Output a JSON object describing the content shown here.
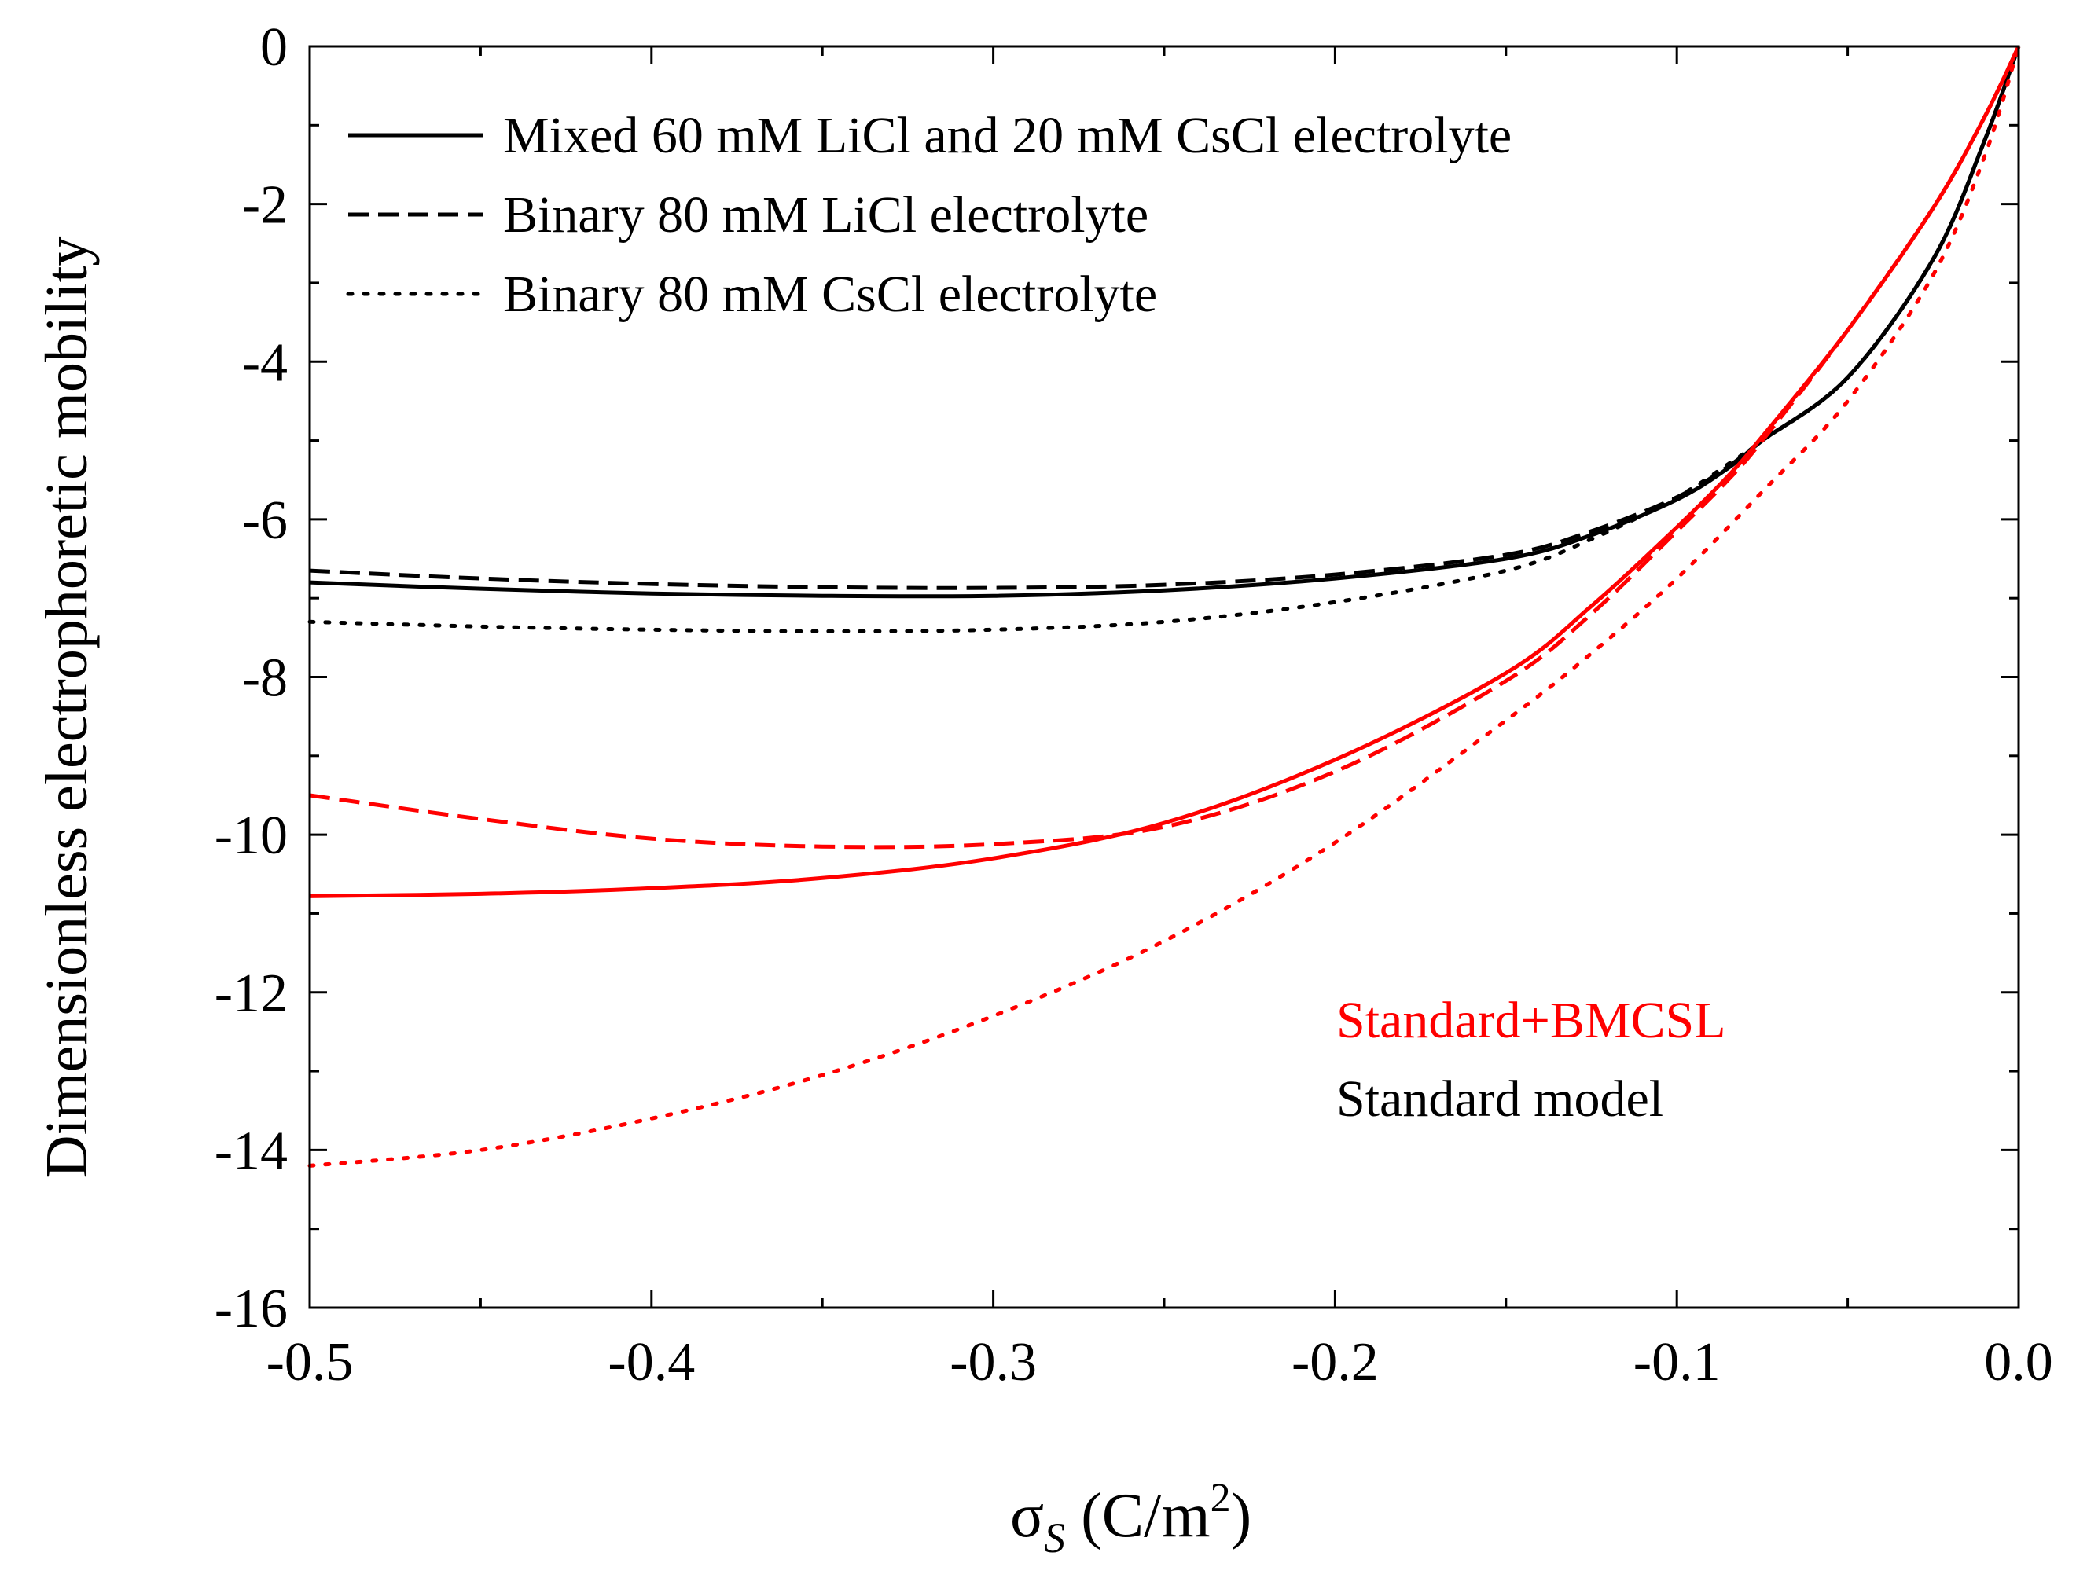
{
  "chart_data": {
    "type": "line",
    "title": "",
    "xlabel": "σ",
    "xlabel_sub": "S",
    "xlabel_units_pre": " (C/m",
    "xlabel_units_sup": "2",
    "xlabel_units_post": ")",
    "ylabel": "Dimensionless electrophoretic mobility",
    "xlim": [
      -0.5,
      0.0
    ],
    "ylim": [
      -16,
      0
    ],
    "xticks": [
      -0.5,
      -0.4,
      -0.3,
      -0.2,
      -0.1,
      0.0
    ],
    "xtick_labels": [
      "-0.5",
      "-0.4",
      "-0.3",
      "-0.2",
      "-0.1",
      "0.0"
    ],
    "yticks": [
      0,
      -2,
      -4,
      -6,
      -8,
      -10,
      -12,
      -14,
      -16
    ],
    "ytick_labels": [
      "0",
      "-2",
      "-4",
      "-6",
      "-8",
      "-10",
      "-12",
      "-14",
      "-16"
    ],
    "legend_linestyles": [
      {
        "label": "Mixed 60 mM LiCl and 20 mM CsCl electrolyte",
        "style": "solid"
      },
      {
        "label": "Binary 80 mM LiCl electrolyte",
        "style": "dashed"
      },
      {
        "label": "Binary 80 mM CsCl electrolyte",
        "style": "dotted"
      }
    ],
    "legend_models": [
      {
        "label": "Standard+BMCSL",
        "color": "#ff0000"
      },
      {
        "label": "Standard model",
        "color": "#000000"
      }
    ],
    "series": [
      {
        "name": "Standard model - Mixed 60 mM LiCl and 20 mM CsCl",
        "model": "Standard model",
        "color": "#000000",
        "style": "solid",
        "x": [
          -0.5,
          -0.45,
          -0.4,
          -0.35,
          -0.3,
          -0.25,
          -0.2,
          -0.15,
          -0.125,
          -0.1,
          -0.085,
          -0.075,
          -0.05,
          -0.025,
          -0.01,
          0.0
        ],
        "y": [
          -6.8,
          -6.88,
          -6.94,
          -6.97,
          -6.97,
          -6.9,
          -6.75,
          -6.5,
          -6.2,
          -5.75,
          -5.35,
          -5.0,
          -4.2,
          -2.7,
          -1.2,
          0.0
        ]
      },
      {
        "name": "Standard model - Binary 80 mM LiCl",
        "model": "Standard model",
        "color": "#000000",
        "style": "dashed",
        "x": [
          -0.5,
          -0.45,
          -0.4,
          -0.35,
          -0.3,
          -0.25,
          -0.2,
          -0.15,
          -0.125,
          -0.1,
          -0.085,
          -0.075,
          -0.05,
          -0.025,
          -0.01,
          0.0
        ],
        "y": [
          -6.65,
          -6.75,
          -6.82,
          -6.86,
          -6.87,
          -6.83,
          -6.7,
          -6.45,
          -6.15,
          -5.72,
          -5.33,
          -5.0,
          -4.2,
          -2.7,
          -1.2,
          0.0
        ]
      },
      {
        "name": "Standard model - Binary 80 mM CsCl",
        "model": "Standard model",
        "color": "#000000",
        "style": "dotted",
        "x": [
          -0.5,
          -0.45,
          -0.4,
          -0.35,
          -0.3,
          -0.25,
          -0.2,
          -0.15,
          -0.125,
          -0.1,
          -0.085,
          -0.075,
          -0.05,
          -0.025,
          -0.01,
          0.0
        ],
        "y": [
          -7.3,
          -7.36,
          -7.4,
          -7.42,
          -7.4,
          -7.3,
          -7.05,
          -6.65,
          -6.25,
          -5.72,
          -5.3,
          -5.0,
          -4.2,
          -2.7,
          -1.2,
          0.0
        ]
      },
      {
        "name": "Standard+BMCSL - Mixed 60 mM LiCl and 20 mM CsCl",
        "model": "Standard+BMCSL",
        "color": "#ff0000",
        "style": "solid",
        "x": [
          -0.5,
          -0.45,
          -0.4,
          -0.35,
          -0.3,
          -0.25,
          -0.2,
          -0.15,
          -0.125,
          -0.1,
          -0.085,
          -0.075,
          -0.05,
          -0.025,
          -0.01,
          0.0
        ],
        "y": [
          -10.78,
          -10.75,
          -10.68,
          -10.55,
          -10.3,
          -9.85,
          -9.05,
          -7.95,
          -7.1,
          -6.1,
          -5.45,
          -4.95,
          -3.6,
          -2.05,
          -0.9,
          0.0
        ]
      },
      {
        "name": "Standard+BMCSL - Binary 80 mM LiCl",
        "model": "Standard+BMCSL",
        "color": "#ff0000",
        "style": "dashed",
        "x": [
          -0.5,
          -0.45,
          -0.4,
          -0.35,
          -0.3,
          -0.25,
          -0.2,
          -0.15,
          -0.125,
          -0.1,
          -0.085,
          -0.075,
          -0.05,
          -0.025,
          -0.01,
          0.0
        ],
        "y": [
          -9.5,
          -9.8,
          -10.05,
          -10.15,
          -10.12,
          -9.9,
          -9.2,
          -8.05,
          -7.2,
          -6.15,
          -5.5,
          -5.0,
          -3.6,
          -2.05,
          -0.9,
          0.0
        ]
      },
      {
        "name": "Standard+BMCSL - Binary 80 mM CsCl",
        "model": "Standard+BMCSL",
        "color": "#ff0000",
        "style": "dotted",
        "x": [
          -0.5,
          -0.45,
          -0.4,
          -0.35,
          -0.3,
          -0.25,
          -0.2,
          -0.15,
          -0.125,
          -0.1,
          -0.075,
          -0.05,
          -0.025,
          -0.01,
          0.0
        ],
        "y": [
          -14.2,
          -14.0,
          -13.6,
          -13.05,
          -12.3,
          -11.35,
          -10.1,
          -8.55,
          -7.7,
          -6.75,
          -5.65,
          -4.5,
          -2.9,
          -1.4,
          0.0
        ]
      }
    ]
  }
}
